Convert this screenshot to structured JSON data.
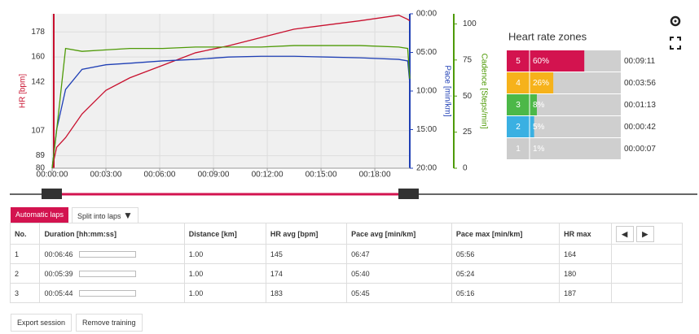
{
  "chart_data": [
    {
      "type": "line",
      "ylabel": "HR [bpm]",
      "y2label": "Pace [min/km]",
      "y3label": "Cadence [Steps/min]",
      "x": [
        0,
        15,
        45,
        100,
        180,
        260,
        370,
        480,
        590,
        700,
        810,
        920,
        1030,
        1160,
        1190,
        1197
      ],
      "series": [
        {
          "name": "HR",
          "color": "#c8102e",
          "axis": "y",
          "values": [
            80,
            95,
            102,
            119,
            136,
            145,
            154,
            163,
            168,
            174,
            180,
            183,
            186,
            190,
            187,
            186
          ]
        },
        {
          "name": "Pace",
          "color": "#1f3fb5",
          "axis": "y2",
          "values": [
            20,
            15,
            9.8,
            7.2,
            6.6,
            6.4,
            6.1,
            5.9,
            5.6,
            5.5,
            5.5,
            5.6,
            5.7,
            5.9,
            6.1,
            9
          ]
        },
        {
          "name": "Cadence",
          "color": "#4e9a06",
          "axis": "y3",
          "values": [
            0,
            26,
            83,
            81,
            82,
            83,
            83,
            84,
            84,
            84,
            85,
            85,
            85,
            84,
            83,
            62
          ]
        }
      ],
      "xlim": [
        0,
        1197
      ],
      "xticks": [
        {
          "value": 0,
          "label": "00:00:00"
        },
        {
          "value": 180,
          "label": "00:03:00"
        },
        {
          "value": 360,
          "label": "00:06:00"
        },
        {
          "value": 540,
          "label": "00:09:00"
        },
        {
          "value": 720,
          "label": "00:12:00"
        },
        {
          "value": 900,
          "label": "00:15:00"
        },
        {
          "value": 1080,
          "label": "00:18:00"
        }
      ],
      "ylim": [
        80,
        191
      ],
      "yticks": [
        80,
        89,
        107,
        142,
        160,
        178
      ],
      "y2lim": [
        20,
        0
      ],
      "y2ticks": [
        {
          "value": 0,
          "label": "00:00"
        },
        {
          "value": 5,
          "label": "05:00"
        },
        {
          "value": 10,
          "label": "10:00"
        },
        {
          "value": 15,
          "label": "15:00"
        },
        {
          "value": 20,
          "label": "20:00"
        }
      ],
      "y3lim": [
        0,
        107
      ],
      "y3ticks": [
        0,
        25,
        50,
        75,
        100
      ],
      "grid": true
    },
    {
      "type": "bar",
      "orientation": "horizontal",
      "title": "Heart rate zones",
      "categories": [
        "5",
        "4",
        "3",
        "2",
        "1"
      ],
      "values": [
        60,
        26,
        8,
        5,
        1
      ],
      "value_labels": [
        "60%",
        "26%",
        "8%",
        "5%",
        "1%"
      ],
      "colors": [
        "#d3134f",
        "#f6b21b",
        "#4cb848",
        "#3ab0e2",
        "#cccccc"
      ],
      "durations": [
        "00:09:11",
        "00:03:56",
        "00:01:13",
        "00:00:42",
        "00:00:07"
      ],
      "xlim": [
        0,
        100
      ]
    }
  ],
  "tabs": [
    "Automatic laps",
    "Split into laps"
  ],
  "table": {
    "header": [
      "No.",
      "Duration [hh:mm:ss]",
      "Distance [km]",
      "HR avg [bpm]",
      "Pace avg [min/km]",
      "Pace max [min/km]",
      "HR max"
    ],
    "rows": [
      [
        "1",
        "00:06:46",
        "1.00",
        "145",
        "06:47",
        "05:56",
        "164"
      ],
      [
        "2",
        "00:05:39",
        "1.00",
        "174",
        "05:40",
        "05:24",
        "180"
      ],
      [
        "3",
        "00:05:44",
        "1.00",
        "183",
        "05:45",
        "05:16",
        "187"
      ]
    ]
  },
  "buttons": [
    "Export session",
    "Remove training"
  ]
}
